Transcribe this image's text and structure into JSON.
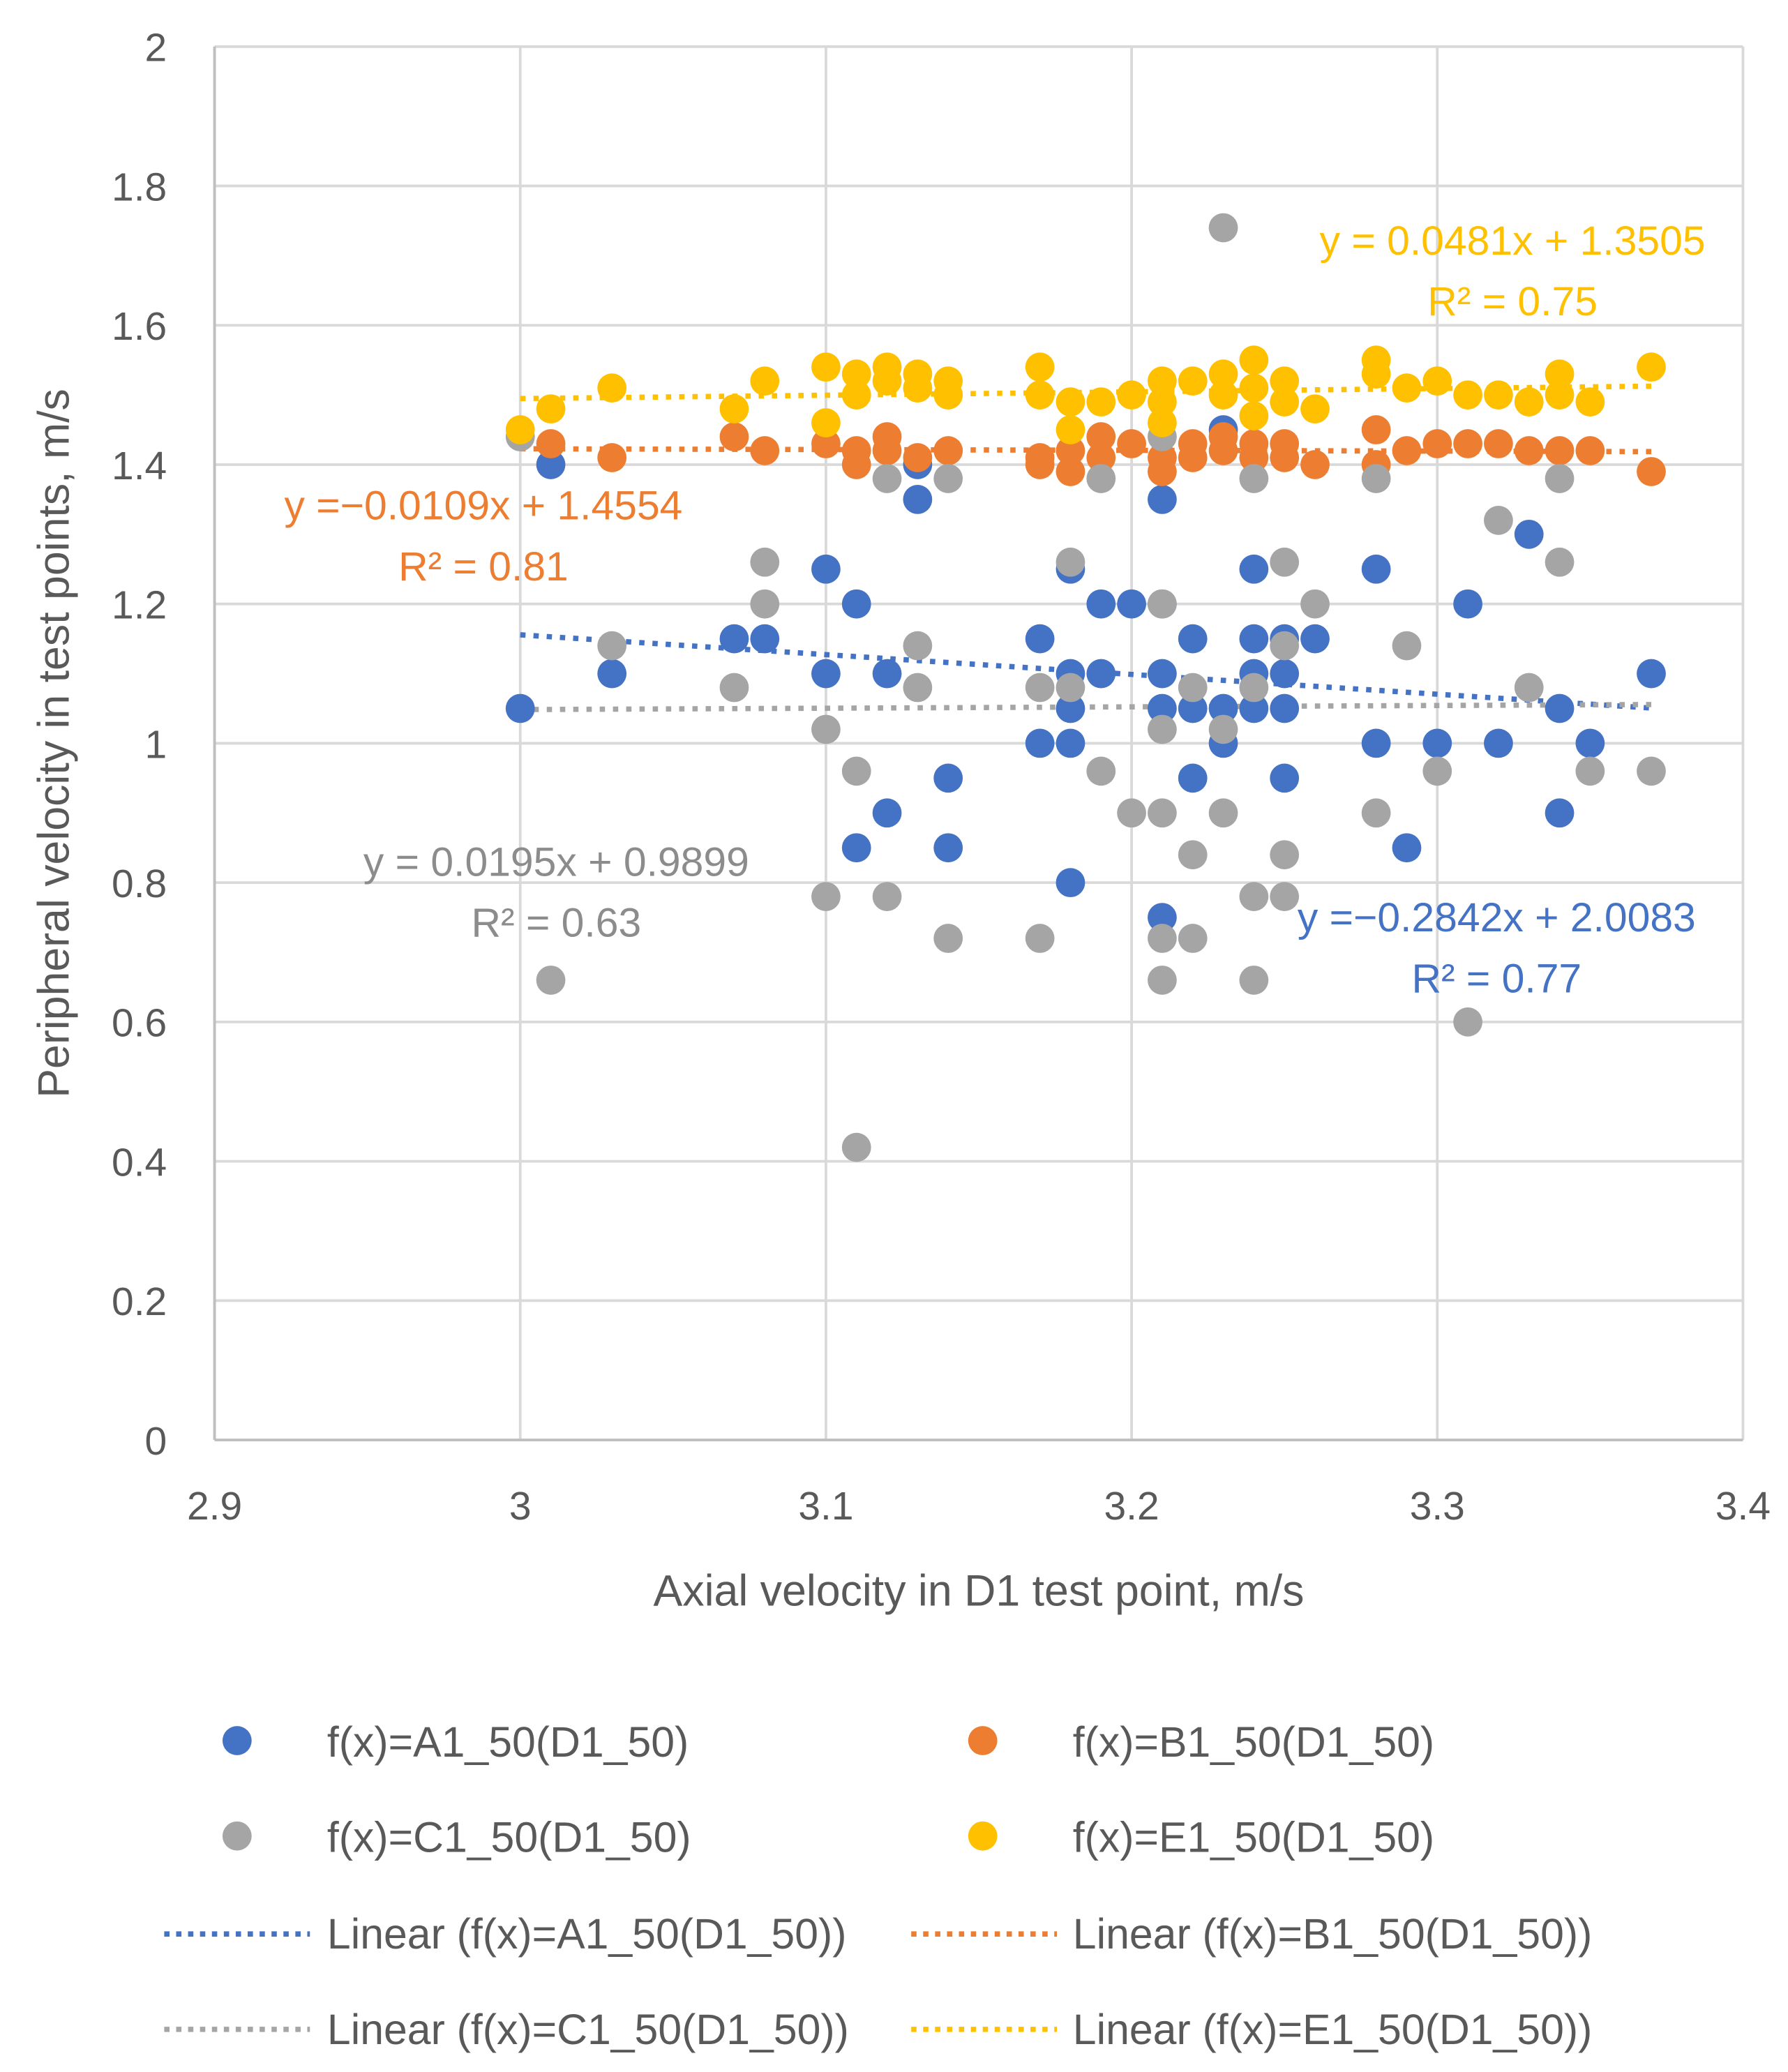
{
  "chart_data": {
    "type": "scatter",
    "xlabel": "Axial velocity in D1 test point, m/s",
    "ylabel": "Peripheral velocity in test points, m/s",
    "xlim": [
      2.9,
      3.4
    ],
    "ylim": [
      0,
      2
    ],
    "xticks": [
      "2.9",
      "3",
      "3.1",
      "3.2",
      "3.3",
      "3.4"
    ],
    "xtick_values": [
      2.9,
      3.0,
      3.1,
      3.2,
      3.3,
      3.4
    ],
    "yticks": [
      "0",
      "0.2",
      "0.4",
      "0.6",
      "0.8",
      "1",
      "1.2",
      "1.4",
      "1.6",
      "1.8",
      "2"
    ],
    "ytick_values": [
      0,
      0.2,
      0.4,
      0.6,
      0.8,
      1,
      1.2,
      1.4,
      1.6,
      1.8,
      2
    ],
    "grid": true,
    "legend_position": "bottom",
    "series": [
      {
        "name": "f(x)=A1_50(D1_50)",
        "color": "#4472C4",
        "trend": {
          "label": "Linear (f(x)=A1_50(D1_50))",
          "slope": -0.2842,
          "intercept": 2.0083,
          "x_range": [
            3.0,
            3.37
          ],
          "equation": "y =−0.2842x + 2.0083",
          "r2": "R² = 0.77"
        },
        "points": [
          [
            3.0,
            1.05
          ],
          [
            3.01,
            1.4
          ],
          [
            3.03,
            1.1
          ],
          [
            3.07,
            1.15
          ],
          [
            3.08,
            1.15
          ],
          [
            3.1,
            1.25
          ],
          [
            3.1,
            1.1
          ],
          [
            3.11,
            1.2
          ],
          [
            3.11,
            0.85
          ],
          [
            3.12,
            1.1
          ],
          [
            3.12,
            0.9
          ],
          [
            3.13,
            1.4
          ],
          [
            3.13,
            1.35
          ],
          [
            3.14,
            0.95
          ],
          [
            3.14,
            0.85
          ],
          [
            3.17,
            1.15
          ],
          [
            3.17,
            1.0
          ],
          [
            3.18,
            1.25
          ],
          [
            3.18,
            1.1
          ],
          [
            3.18,
            1.05
          ],
          [
            3.18,
            1.0
          ],
          [
            3.18,
            0.8
          ],
          [
            3.19,
            1.2
          ],
          [
            3.19,
            1.1
          ],
          [
            3.2,
            1.2
          ],
          [
            3.21,
            1.35
          ],
          [
            3.21,
            1.2
          ],
          [
            3.21,
            1.1
          ],
          [
            3.21,
            1.05
          ],
          [
            3.21,
            0.75
          ],
          [
            3.22,
            1.15
          ],
          [
            3.22,
            1.05
          ],
          [
            3.22,
            0.95
          ],
          [
            3.23,
            1.45
          ],
          [
            3.23,
            1.05
          ],
          [
            3.23,
            1.0
          ],
          [
            3.24,
            1.25
          ],
          [
            3.24,
            1.15
          ],
          [
            3.24,
            1.1
          ],
          [
            3.24,
            1.05
          ],
          [
            3.25,
            1.15
          ],
          [
            3.25,
            1.1
          ],
          [
            3.25,
            1.05
          ],
          [
            3.25,
            0.95
          ],
          [
            3.26,
            1.15
          ],
          [
            3.28,
            1.25
          ],
          [
            3.28,
            1.0
          ],
          [
            3.29,
            0.85
          ],
          [
            3.3,
            1.0
          ],
          [
            3.31,
            1.2
          ],
          [
            3.32,
            1.0
          ],
          [
            3.33,
            1.3
          ],
          [
            3.34,
            1.05
          ],
          [
            3.34,
            0.9
          ],
          [
            3.35,
            1.0
          ],
          [
            3.37,
            1.1
          ]
        ]
      },
      {
        "name": "f(x)=B1_50(D1_50)",
        "color": "#ED7D31",
        "trend": {
          "label": "Linear (f(x)=B1_50(D1_50))",
          "slope": -0.0109,
          "intercept": 1.4554,
          "x_range": [
            3.0,
            3.37
          ],
          "equation": "y =−0.0109x + 1.4554",
          "r2": "R² = 0.81"
        },
        "points": [
          [
            3.01,
            1.43
          ],
          [
            3.03,
            1.41
          ],
          [
            3.07,
            1.44
          ],
          [
            3.08,
            1.42
          ],
          [
            3.1,
            1.43
          ],
          [
            3.11,
            1.42
          ],
          [
            3.11,
            1.4
          ],
          [
            3.12,
            1.44
          ],
          [
            3.12,
            1.42
          ],
          [
            3.13,
            1.41
          ],
          [
            3.14,
            1.42
          ],
          [
            3.17,
            1.41
          ],
          [
            3.17,
            1.4
          ],
          [
            3.18,
            1.42
          ],
          [
            3.18,
            1.39
          ],
          [
            3.19,
            1.44
          ],
          [
            3.19,
            1.41
          ],
          [
            3.2,
            1.43
          ],
          [
            3.21,
            1.41
          ],
          [
            3.21,
            1.39
          ],
          [
            3.22,
            1.43
          ],
          [
            3.22,
            1.41
          ],
          [
            3.23,
            1.44
          ],
          [
            3.23,
            1.42
          ],
          [
            3.24,
            1.43
          ],
          [
            3.24,
            1.41
          ],
          [
            3.25,
            1.43
          ],
          [
            3.25,
            1.41
          ],
          [
            3.26,
            1.4
          ],
          [
            3.28,
            1.45
          ],
          [
            3.28,
            1.4
          ],
          [
            3.29,
            1.42
          ],
          [
            3.3,
            1.43
          ],
          [
            3.31,
            1.43
          ],
          [
            3.32,
            1.43
          ],
          [
            3.33,
            1.42
          ],
          [
            3.34,
            1.42
          ],
          [
            3.35,
            1.42
          ],
          [
            3.37,
            1.39
          ]
        ]
      },
      {
        "name": "f(x)=C1_50(D1_50)",
        "color": "#A5A5A5",
        "trend": {
          "label": "Linear (f(x)=C1_50(D1_50))",
          "slope": 0.0195,
          "intercept": 0.9899,
          "x_range": [
            3.0,
            3.37
          ],
          "equation": "y = 0.0195x + 0.9899",
          "r2": "R² = 0.63"
        },
        "points": [
          [
            3.0,
            1.44
          ],
          [
            3.01,
            0.66
          ],
          [
            3.03,
            1.14
          ],
          [
            3.07,
            1.08
          ],
          [
            3.08,
            1.26
          ],
          [
            3.08,
            1.2
          ],
          [
            3.1,
            1.02
          ],
          [
            3.1,
            0.78
          ],
          [
            3.11,
            0.96
          ],
          [
            3.11,
            0.42
          ],
          [
            3.12,
            1.38
          ],
          [
            3.12,
            0.78
          ],
          [
            3.13,
            1.14
          ],
          [
            3.13,
            1.08
          ],
          [
            3.14,
            1.38
          ],
          [
            3.14,
            0.72
          ],
          [
            3.17,
            1.08
          ],
          [
            3.17,
            0.72
          ],
          [
            3.18,
            1.26
          ],
          [
            3.18,
            1.08
          ],
          [
            3.19,
            1.38
          ],
          [
            3.19,
            0.96
          ],
          [
            3.2,
            0.9
          ],
          [
            3.21,
            1.44
          ],
          [
            3.21,
            1.2
          ],
          [
            3.21,
            1.02
          ],
          [
            3.21,
            0.9
          ],
          [
            3.21,
            0.72
          ],
          [
            3.21,
            0.66
          ],
          [
            3.22,
            1.08
          ],
          [
            3.22,
            0.84
          ],
          [
            3.22,
            0.72
          ],
          [
            3.23,
            1.74
          ],
          [
            3.23,
            1.02
          ],
          [
            3.23,
            0.9
          ],
          [
            3.24,
            1.38
          ],
          [
            3.24,
            1.08
          ],
          [
            3.24,
            0.78
          ],
          [
            3.24,
            0.66
          ],
          [
            3.25,
            1.26
          ],
          [
            3.25,
            1.14
          ],
          [
            3.25,
            0.84
          ],
          [
            3.25,
            0.78
          ],
          [
            3.26,
            1.2
          ],
          [
            3.28,
            1.38
          ],
          [
            3.28,
            0.9
          ],
          [
            3.29,
            1.14
          ],
          [
            3.3,
            0.96
          ],
          [
            3.31,
            0.6
          ],
          [
            3.32,
            1.32
          ],
          [
            3.33,
            1.08
          ],
          [
            3.34,
            1.38
          ],
          [
            3.34,
            1.26
          ],
          [
            3.35,
            0.96
          ],
          [
            3.37,
            0.96
          ]
        ]
      },
      {
        "name": "f(x)=E1_50(D1_50)",
        "color": "#FFC000",
        "trend": {
          "label": "Linear (f(x)=E1_50(D1_50))",
          "slope": 0.0481,
          "intercept": 1.3505,
          "x_range": [
            3.0,
            3.37
          ],
          "equation": "y = 0.0481x + 1.3505",
          "r2": "R² = 0.75"
        },
        "points": [
          [
            3.0,
            1.45
          ],
          [
            3.01,
            1.48
          ],
          [
            3.03,
            1.51
          ],
          [
            3.07,
            1.48
          ],
          [
            3.08,
            1.52
          ],
          [
            3.1,
            1.54
          ],
          [
            3.1,
            1.46
          ],
          [
            3.11,
            1.53
          ],
          [
            3.11,
            1.5
          ],
          [
            3.12,
            1.54
          ],
          [
            3.12,
            1.52
          ],
          [
            3.13,
            1.53
          ],
          [
            3.13,
            1.51
          ],
          [
            3.14,
            1.52
          ],
          [
            3.14,
            1.5
          ],
          [
            3.17,
            1.54
          ],
          [
            3.17,
            1.5
          ],
          [
            3.18,
            1.49
          ],
          [
            3.18,
            1.45
          ],
          [
            3.19,
            1.49
          ],
          [
            3.2,
            1.5
          ],
          [
            3.21,
            1.52
          ],
          [
            3.21,
            1.49
          ],
          [
            3.21,
            1.46
          ],
          [
            3.22,
            1.52
          ],
          [
            3.23,
            1.53
          ],
          [
            3.23,
            1.5
          ],
          [
            3.24,
            1.55
          ],
          [
            3.24,
            1.51
          ],
          [
            3.24,
            1.47
          ],
          [
            3.25,
            1.52
          ],
          [
            3.25,
            1.49
          ],
          [
            3.26,
            1.48
          ],
          [
            3.28,
            1.55
          ],
          [
            3.28,
            1.53
          ],
          [
            3.29,
            1.51
          ],
          [
            3.3,
            1.52
          ],
          [
            3.31,
            1.5
          ],
          [
            3.32,
            1.5
          ],
          [
            3.33,
            1.49
          ],
          [
            3.34,
            1.53
          ],
          [
            3.34,
            1.5
          ],
          [
            3.35,
            1.49
          ],
          [
            3.37,
            1.54
          ]
        ]
      }
    ]
  }
}
